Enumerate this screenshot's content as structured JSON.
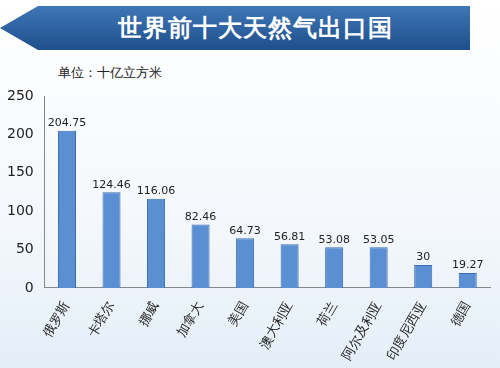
{
  "chart_data": {
    "type": "bar",
    "title": "世界前十大天然气出口国",
    "ylabel": "单位：十亿立方米",
    "categories": [
      "俄罗斯",
      "卡塔尔",
      "挪威",
      "加拿大",
      "美国",
      "澳大利亚",
      "荷兰",
      "阿尔及利亚",
      "印度尼西亚",
      "德国"
    ],
    "values": [
      204.75,
      124.46,
      116.06,
      82.46,
      64.73,
      56.81,
      53.08,
      53.05,
      30,
      19.27
    ],
    "color": "#5b8fd3",
    "ylim": [
      0,
      250
    ],
    "yticks": [
      0,
      50,
      100,
      150,
      200,
      250
    ],
    "grid": false,
    "data_labels": true
  }
}
